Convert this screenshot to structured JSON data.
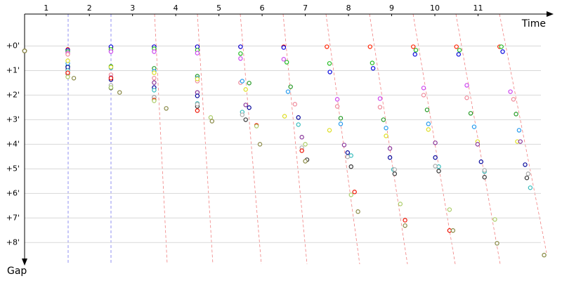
{
  "chart_data": {
    "type": "line",
    "x_label": "Time",
    "y_label": "Gap",
    "xlim": [
      0,
      12.2
    ],
    "ylim": [
      -1.3,
      8.85
    ],
    "y_inverted": true,
    "grid": true,
    "xticks": [
      {
        "value": 0.5,
        "label": "1"
      },
      {
        "value": 1.5,
        "label": "2"
      },
      {
        "value": 2.5,
        "label": "3"
      },
      {
        "value": 3.5,
        "label": "4"
      },
      {
        "value": 4.5,
        "label": "5"
      },
      {
        "value": 5.5,
        "label": "6"
      },
      {
        "value": 6.5,
        "label": "7"
      },
      {
        "value": 7.5,
        "label": "8"
      },
      {
        "value": 8.5,
        "label": "9"
      },
      {
        "value": 9.5,
        "label": "10"
      },
      {
        "value": 10.5,
        "label": "11"
      }
    ],
    "yticks": [
      {
        "value": 0,
        "label": "+0'"
      },
      {
        "value": 1,
        "label": "+1'"
      },
      {
        "value": 2,
        "label": "+2'"
      },
      {
        "value": 3,
        "label": "+3'"
      },
      {
        "value": 4,
        "label": "+4'"
      },
      {
        "value": 5,
        "label": "+5'"
      },
      {
        "value": 6,
        "label": "+6'"
      },
      {
        "value": 7,
        "label": "+7'"
      },
      {
        "value": 8,
        "label": "+8'"
      }
    ],
    "series": [
      {
        "color": "#ff2200",
        "x": [
          0,
          1,
          2,
          3,
          4,
          5,
          6,
          7,
          8,
          9,
          10,
          11
        ],
        "values": [
          0.2,
          0.14,
          0.06,
          0.03,
          0.03,
          0.03,
          0.03,
          0.03,
          0.03,
          0.03,
          0.03,
          0.03
        ]
      },
      {
        "color": "#0000dd",
        "x": [
          0,
          1,
          2,
          3,
          4,
          5,
          6,
          7.07,
          8.07,
          9.04,
          10.05,
          11.07
        ],
        "values": [
          0.2,
          0.17,
          0.03,
          0.03,
          0.03,
          0.03,
          0.06,
          1.06,
          0.91,
          0.34,
          0.34,
          0.23
        ]
      },
      {
        "color": "#22bb22",
        "x": [
          0,
          1,
          2,
          3,
          4,
          5,
          6.07,
          7.06,
          8.05,
          9.06,
          10.07,
          11.04
        ],
        "values": [
          0.2,
          0.23,
          0.14,
          0.11,
          0.17,
          0.31,
          0.66,
          0.71,
          0.69,
          0.17,
          0.17,
          0.03
        ]
      },
      {
        "color": "#cc44ee",
        "x": [
          0,
          1,
          2,
          3,
          4,
          5,
          6,
          7.24,
          8.23,
          9.24,
          10.24,
          11.25
        ],
        "values": [
          0.2,
          0.29,
          0.23,
          0.23,
          0.29,
          0.51,
          0.54,
          2.17,
          2.14,
          1.71,
          1.6,
          1.86
        ]
      },
      {
        "color": "#ee8899",
        "x": [
          0,
          1,
          2,
          3,
          4,
          5,
          6.26,
          7.24,
          8.23,
          9.24,
          10.24,
          11.32
        ],
        "values": [
          0.2,
          0.34,
          1.17,
          1.31,
          1.43,
          1.49,
          2.37,
          2.46,
          2.49,
          2,
          2.11,
          2.17
        ]
      },
      {
        "color": "#229922",
        "x": [
          0,
          1,
          2,
          3,
          4,
          5.2,
          6.16,
          7.32,
          8.31,
          9.32,
          10.33,
          11.38
        ],
        "values": [
          0.2,
          0.83,
          0.83,
          0.91,
          1.23,
          1.51,
          1.66,
          2.94,
          3,
          2.6,
          2.74,
          2.77
        ]
      },
      {
        "color": "#2299ee",
        "x": [
          0,
          1,
          2,
          3,
          4,
          5.04,
          6.1,
          7.32,
          8.37,
          9.35,
          10.41,
          11.45
        ],
        "values": [
          0.2,
          0.71,
          0.89,
          1.03,
          1.31,
          1.43,
          1.86,
          3.17,
          3.34,
          3.17,
          3.29,
          3.43
        ]
      },
      {
        "color": "#dddd22",
        "x": [
          0,
          1,
          2,
          3,
          4,
          5.12,
          6.02,
          7.06,
          8.37,
          9.35,
          10.49,
          11.41
        ],
        "values": [
          0.2,
          0.6,
          0.86,
          1.09,
          1.34,
          1.77,
          2.86,
          3.43,
          3.66,
          3.4,
          3.89,
          3.89
        ]
      },
      {
        "color": "#883399",
        "x": [
          0,
          1,
          2,
          3,
          4,
          5.12,
          6.42,
          7.4,
          8.46,
          9.51,
          10.49,
          11.48
        ],
        "values": [
          0.2,
          0.94,
          1.29,
          1.49,
          1.89,
          2.4,
          3.71,
          4.03,
          4.17,
          3.94,
          4,
          3.89
        ]
      },
      {
        "color": "#000099",
        "x": [
          0,
          1,
          2,
          3,
          4,
          5.2,
          6.34,
          7.48,
          8.46,
          9.51,
          10.57,
          11.59
        ],
        "values": [
          0.2,
          0.86,
          1.37,
          1.69,
          2.03,
          2.51,
          2.91,
          4.34,
          4.54,
          4.54,
          4.71,
          4.83
        ]
      },
      {
        "color": "#33bbbb",
        "x": [
          0,
          1,
          2,
          3,
          4,
          5.04,
          6.34,
          7.56,
          8.54,
          9.59,
          10.65,
          11.71
        ],
        "values": [
          0.2,
          1,
          1.69,
          1.8,
          2.34,
          2.69,
          3.2,
          4.46,
          5.03,
          4.91,
          5.11,
          5.77
        ]
      },
      {
        "color": "#333333",
        "x": [
          0,
          1,
          2,
          3,
          4,
          5.12,
          6.54,
          7.56,
          8.57,
          9.59,
          10.65,
          11.63
        ],
        "values": [
          0.2,
          1.14,
          1.71,
          2.09,
          2.46,
          3,
          4.63,
          4.91,
          5.2,
          5.09,
          5.34,
          5.37
        ]
      },
      {
        "color": "#aaaaaa",
        "x": [
          0,
          1,
          2,
          3,
          4,
          5.04,
          6.42,
          7.48,
          8.57,
          9.51,
          10.65,
          11.66
        ],
        "values": [
          0.2,
          1.14,
          1.6,
          2.09,
          2.37,
          2.8,
          4.14,
          4.51,
          5.03,
          4.89,
          5.06,
          5.2
        ]
      },
      {
        "color": "#ee1100",
        "x": [
          0,
          1,
          2,
          3,
          4,
          5.37,
          6.42,
          7.64,
          8.81,
          9.84
        ],
        "values": [
          0.2,
          1.09,
          1.31,
          2.2,
          2.63,
          3.23,
          4.26,
          5.94,
          7.09,
          7.51
        ]
      },
      {
        "color": "#aacc66",
        "x": [
          0,
          1,
          2,
          3,
          4.31,
          5.37,
          6.5,
          7.56,
          8.7,
          9.84,
          10.89,
          12.03
        ],
        "values": [
          0.2,
          1.26,
          1.69,
          2.23,
          2.91,
          3.26,
          4,
          6.06,
          6.43,
          6.66,
          7.06,
          8.51
        ]
      },
      {
        "color": "#888844",
        "x": [
          0,
          1.14,
          2.2,
          3.28,
          4.34,
          5.45,
          6.5,
          7.72,
          8.81,
          9.92,
          10.94,
          12.03
        ],
        "values": [
          0.2,
          1.31,
          1.89,
          2.54,
          3.06,
          4,
          4.69,
          6.74,
          7.31,
          7.51,
          8.03,
          8.51
        ]
      }
    ]
  }
}
